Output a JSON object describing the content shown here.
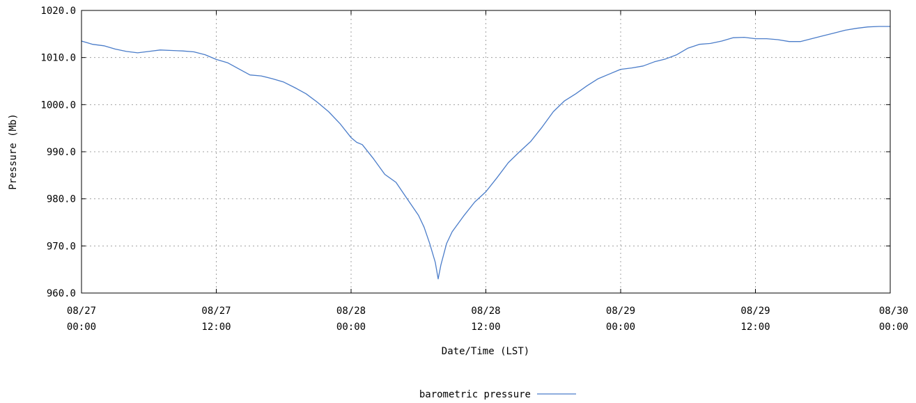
{
  "chart_data": {
    "type": "line",
    "title": "",
    "xlabel": "Date/Time (LST)",
    "ylabel": "Pressure (Mb)",
    "ylim": [
      960.0,
      1020.0
    ],
    "xlim": [
      "08/27 00:00",
      "08/30 00:00"
    ],
    "y_ticks": [
      "960.0",
      "970.0",
      "980.0",
      "990.0",
      "1000.0",
      "1010.0",
      "1020.0"
    ],
    "x_ticks": [
      {
        "date": "08/27",
        "time": "00:00"
      },
      {
        "date": "08/27",
        "time": "12:00"
      },
      {
        "date": "08/28",
        "time": "00:00"
      },
      {
        "date": "08/28",
        "time": "12:00"
      },
      {
        "date": "08/29",
        "time": "00:00"
      },
      {
        "date": "08/29",
        "time": "12:00"
      },
      {
        "date": "08/30",
        "time": "00:00"
      }
    ],
    "grid": true,
    "legend_position": "bottom-center",
    "series": [
      {
        "name": "barometric pressure",
        "color": "#4a7cc9",
        "points": [
          [
            "08/27 00:00",
            1013.5
          ],
          [
            "08/27 01:00",
            1012.8
          ],
          [
            "08/27 02:00",
            1012.5
          ],
          [
            "08/27 03:00",
            1011.8
          ],
          [
            "08/27 04:00",
            1011.3
          ],
          [
            "08/27 05:00",
            1011.0
          ],
          [
            "08/27 06:00",
            1011.3
          ],
          [
            "08/27 07:00",
            1011.6
          ],
          [
            "08/27 08:00",
            1011.5
          ],
          [
            "08/27 09:00",
            1011.4
          ],
          [
            "08/27 10:00",
            1011.2
          ],
          [
            "08/27 11:00",
            1010.6
          ],
          [
            "08/27 12:00",
            1009.6
          ],
          [
            "08/27 13:00",
            1008.9
          ],
          [
            "08/27 14:00",
            1007.6
          ],
          [
            "08/27 15:00",
            1006.3
          ],
          [
            "08/27 16:00",
            1006.1
          ],
          [
            "08/27 17:00",
            1005.5
          ],
          [
            "08/27 18:00",
            1004.8
          ],
          [
            "08/27 19:00",
            1003.6
          ],
          [
            "08/27 20:00",
            1002.3
          ],
          [
            "08/27 21:00",
            1000.5
          ],
          [
            "08/27 22:00",
            998.5
          ],
          [
            "08/27 23:00",
            996.0
          ],
          [
            "08/28 00:00",
            993.0
          ],
          [
            "08/28 00:30",
            992.0
          ],
          [
            "08/28 01:00",
            991.5
          ],
          [
            "08/28 02:00",
            988.5
          ],
          [
            "08/28 03:00",
            985.2
          ],
          [
            "08/28 04:00",
            983.5
          ],
          [
            "08/28 05:00",
            980.0
          ],
          [
            "08/28 06:00",
            976.5
          ],
          [
            "08/28 06:30",
            974.0
          ],
          [
            "08/28 07:00",
            970.5
          ],
          [
            "08/28 07:30",
            966.5
          ],
          [
            "08/28 07:45",
            963.0
          ],
          [
            "08/28 08:00",
            966.0
          ],
          [
            "08/28 08:30",
            970.5
          ],
          [
            "08/28 09:00",
            973.0
          ],
          [
            "08/28 10:00",
            976.3
          ],
          [
            "08/28 11:00",
            979.3
          ],
          [
            "08/28 12:00",
            981.5
          ],
          [
            "08/28 13:00",
            984.5
          ],
          [
            "08/28 14:00",
            987.7
          ],
          [
            "08/28 15:00",
            990.0
          ],
          [
            "08/28 16:00",
            992.2
          ],
          [
            "08/28 17:00",
            995.2
          ],
          [
            "08/28 18:00",
            998.5
          ],
          [
            "08/28 19:00",
            1000.8
          ],
          [
            "08/28 20:00",
            1002.3
          ],
          [
            "08/28 21:00",
            1004.0
          ],
          [
            "08/28 22:00",
            1005.5
          ],
          [
            "08/28 23:00",
            1006.5
          ],
          [
            "08/29 00:00",
            1007.5
          ],
          [
            "08/29 01:00",
            1007.8
          ],
          [
            "08/29 02:00",
            1008.2
          ],
          [
            "08/29 03:00",
            1009.1
          ],
          [
            "08/29 04:00",
            1009.7
          ],
          [
            "08/29 05:00",
            1010.6
          ],
          [
            "08/29 06:00",
            1012.0
          ],
          [
            "08/29 07:00",
            1012.8
          ],
          [
            "08/29 08:00",
            1013.0
          ],
          [
            "08/29 09:00",
            1013.5
          ],
          [
            "08/29 10:00",
            1014.2
          ],
          [
            "08/29 11:00",
            1014.3
          ],
          [
            "08/29 12:00",
            1014.0
          ],
          [
            "08/29 13:00",
            1014.0
          ],
          [
            "08/29 14:00",
            1013.8
          ],
          [
            "08/29 15:00",
            1013.4
          ],
          [
            "08/29 16:00",
            1013.4
          ],
          [
            "08/29 17:00",
            1014.0
          ],
          [
            "08/29 18:00",
            1014.6
          ],
          [
            "08/29 19:00",
            1015.2
          ],
          [
            "08/29 20:00",
            1015.8
          ],
          [
            "08/29 21:00",
            1016.2
          ],
          [
            "08/29 22:00",
            1016.5
          ],
          [
            "08/29 23:00",
            1016.6
          ],
          [
            "08/30 00:00",
            1016.6
          ]
        ]
      }
    ]
  }
}
